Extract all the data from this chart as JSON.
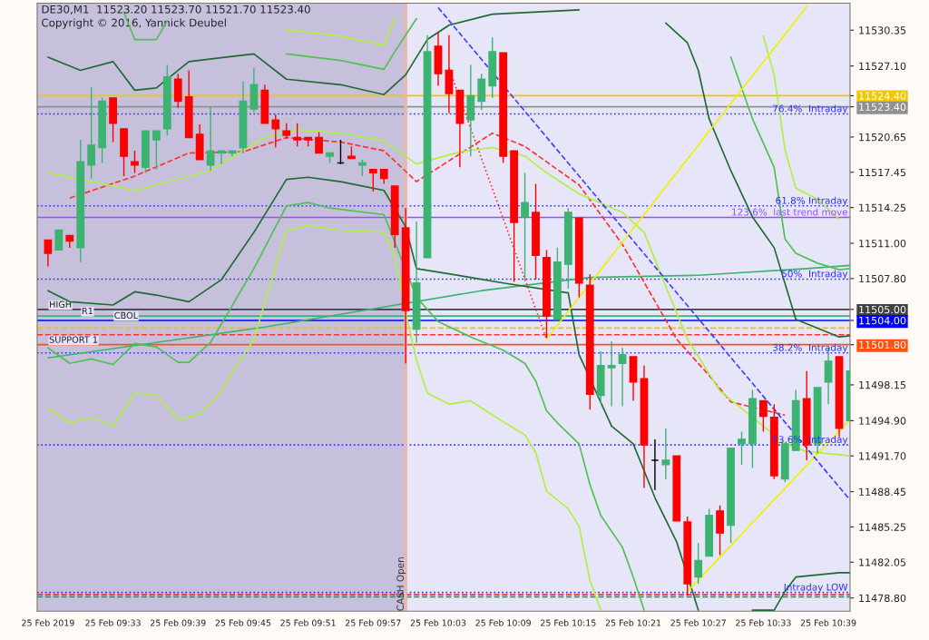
{
  "chart_data": {
    "type": "candlestick",
    "title": "DE30,M1  11523.20 11523.70 11521.70 11523.40",
    "annotations": [
      "Copyright © 2016, Yannick Deubel",
      {
        "text": "HIGH",
        "x": "2019-02-25T09:27",
        "y": 11505.0
      },
      {
        "text": "R1",
        "x": "2019-02-25T09:30",
        "y": 11504.4
      },
      {
        "text": "CBOL",
        "x": "2019-02-25T09:33",
        "y": 11504.0
      },
      {
        "text": "SUPPORT 1",
        "x": "2019-02-25T09:27",
        "y": 11501.8
      }
    ],
    "x": [
      "2019-02-25T09:27",
      "2019-02-25T09:28",
      "2019-02-25T09:29",
      "2019-02-25T09:30",
      "2019-02-25T09:31",
      "2019-02-25T09:32",
      "2019-02-25T09:33",
      "2019-02-25T09:34",
      "2019-02-25T09:35",
      "2019-02-25T09:36",
      "2019-02-25T09:37",
      "2019-02-25T09:38",
      "2019-02-25T09:39",
      "2019-02-25T09:40",
      "2019-02-25T09:41",
      "2019-02-25T09:42",
      "2019-02-25T09:43",
      "2019-02-25T09:44",
      "2019-02-25T09:45",
      "2019-02-25T09:46",
      "2019-02-25T09:47",
      "2019-02-25T09:48",
      "2019-02-25T09:49",
      "2019-02-25T09:50",
      "2019-02-25T09:51",
      "2019-02-25T09:52",
      "2019-02-25T09:53",
      "2019-02-25T09:54",
      "2019-02-25T09:55",
      "2019-02-25T09:56",
      "2019-02-25T09:57",
      "2019-02-25T09:58",
      "2019-02-25T09:59",
      "2019-02-25T10:00",
      "2019-02-25T10:01",
      "2019-02-25T10:02",
      "2019-02-25T10:03",
      "2019-02-25T10:04",
      "2019-02-25T10:05",
      "2019-02-25T10:06",
      "2019-02-25T10:07",
      "2019-02-25T10:08",
      "2019-02-25T10:09",
      "2019-02-25T10:10",
      "2019-02-25T10:11",
      "2019-02-25T10:12",
      "2019-02-25T10:13",
      "2019-02-25T10:14",
      "2019-02-25T10:15",
      "2019-02-25T10:16",
      "2019-02-25T10:17",
      "2019-02-25T10:18",
      "2019-02-25T10:19",
      "2019-02-25T10:20",
      "2019-02-25T10:21",
      "2019-02-25T10:22",
      "2019-02-25T10:23",
      "2019-02-25T10:24",
      "2019-02-25T10:25",
      "2019-02-25T10:26",
      "2019-02-25T10:27",
      "2019-02-25T10:28",
      "2019-02-25T10:29",
      "2019-02-25T10:30",
      "2019-02-25T10:31",
      "2019-02-25T10:32",
      "2019-02-25T10:33",
      "2019-02-25T10:34",
      "2019-02-25T10:35",
      "2019-02-25T10:36",
      "2019-02-25T10:37",
      "2019-02-25T10:38",
      "2019-02-25T10:39",
      "2019-02-25T10:40",
      "2019-02-25T10:41"
    ],
    "ohlc": [
      [
        11511.3,
        11511.3,
        11508.9,
        11510.1
      ],
      [
        11510.4,
        11512.2,
        11510.4,
        11512.2
      ],
      [
        11511.7,
        11511.7,
        11510.6,
        11511.2
      ],
      [
        11510.6,
        11520.4,
        11509.3,
        11518.4
      ],
      [
        11518.1,
        11525.2,
        11516.9,
        11519.9
      ],
      [
        11519.7,
        11524.2,
        11518.3,
        11523.9
      ],
      [
        11524.2,
        11524.2,
        11520.2,
        11521.9
      ],
      [
        11521.4,
        11521.4,
        11517.1,
        11518.9
      ],
      [
        11518.4,
        11519.4,
        11517.4,
        11518.1
      ],
      [
        11517.9,
        11521.2,
        11517.4,
        11521.2
      ],
      [
        11520.4,
        11521.2,
        11517.7,
        11521.2
      ],
      [
        11521.4,
        11527.2,
        11520.8,
        11526.1
      ],
      [
        11525.9,
        11526.4,
        11523.3,
        11523.9
      ],
      [
        11524.3,
        11526.7,
        11520.6,
        11520.6
      ],
      [
        11520.9,
        11521.8,
        11518.6,
        11518.6
      ],
      [
        11518.1,
        11523.4,
        11517.6,
        11519.4
      ],
      [
        11519.2,
        11519.4,
        11518.2,
        11519.4
      ],
      [
        11519.2,
        11519.4,
        11518.9,
        11519.4
      ],
      [
        11519.7,
        11525.7,
        11519.2,
        11523.9
      ],
      [
        11523.2,
        11526.9,
        11522.9,
        11525.4
      ],
      [
        11524.9,
        11525.4,
        11521.9,
        11521.9
      ],
      [
        11522.2,
        11522.7,
        11519.7,
        11521.4
      ],
      [
        11521.2,
        11521.9,
        11520.5,
        11520.8
      ],
      [
        11520.6,
        11521.9,
        11519.8,
        11520.4
      ],
      [
        11520.6,
        11520.6,
        11519.8,
        11520.4
      ],
      [
        11520.6,
        11521.1,
        11519.2,
        11519.2
      ],
      [
        11518.9,
        11519.2,
        11518.3,
        11519.2
      ],
      [
        11518.3,
        11520.4,
        11518.2,
        11518.3
      ],
      [
        11518.9,
        11519.8,
        11518.7,
        11518.7
      ],
      [
        11518.1,
        11518.6,
        11517.1,
        11518.3
      ],
      [
        11517.7,
        11517.7,
        11515.7,
        11517.4
      ],
      [
        11517.7,
        11517.7,
        11516.4,
        11516.9
      ],
      [
        11516.2,
        11516.2,
        11510.6,
        11511.8
      ],
      [
        11512.4,
        11514.2,
        11500.1,
        11504.9
      ],
      [
        11503.2,
        11513.0,
        11502.0,
        11507.4
      ],
      [
        11509.7,
        11529.9,
        11509.7,
        11528.4
      ],
      [
        11528.9,
        11530.2,
        11525.3,
        11526.4
      ],
      [
        11526.7,
        11529.9,
        11522.8,
        11524.6
      ],
      [
        11524.9,
        11524.9,
        11517.9,
        11521.9
      ],
      [
        11522.2,
        11527.2,
        11518.9,
        11524.4
      ],
      [
        11523.9,
        11526.4,
        11523.1,
        11525.9
      ],
      [
        11525.3,
        11529.7,
        11524.2,
        11528.4
      ],
      [
        11528.3,
        11528.3,
        11518.3,
        11518.9
      ],
      [
        11519.4,
        11519.4,
        11507.5,
        11512.9
      ],
      [
        11513.4,
        11517.4,
        11507.7,
        11514.7
      ],
      [
        11513.8,
        11516.4,
        11507.7,
        11509.9
      ],
      [
        11509.7,
        11510.4,
        11502.4,
        11504.4
      ],
      [
        11504.1,
        11510.6,
        11504.1,
        11509.3
      ],
      [
        11509.1,
        11514.2,
        11506.9,
        11513.8
      ],
      [
        11513.3,
        11513.3,
        11506.1,
        11507.4
      ],
      [
        11507.2,
        11508.2,
        11495.9,
        11497.3
      ],
      [
        11497.2,
        11501.2,
        11496.4,
        11499.9
      ],
      [
        11499.7,
        11502.1,
        11496.2,
        11499.9
      ],
      [
        11500.1,
        11501.5,
        11496.2,
        11500.9
      ],
      [
        11500.7,
        11500.7,
        11496.7,
        11498.4
      ],
      [
        11498.7,
        11499.9,
        11488.8,
        11492.7
      ],
      [
        11491.3,
        11493.2,
        11488.6,
        11491.3
      ],
      [
        11490.9,
        11494.2,
        11489.6,
        11491.3
      ],
      [
        11491.7,
        11491.7,
        11485.8,
        11485.8
      ],
      [
        11485.7,
        11486.2,
        11479.0,
        11480.1
      ],
      [
        11480.7,
        11483.8,
        11480.1,
        11482.2
      ],
      [
        11482.6,
        11486.9,
        11482.6,
        11486.3
      ],
      [
        11486.7,
        11487.2,
        11482.7,
        11484.7
      ],
      [
        11485.4,
        11492.4,
        11483.8,
        11492.4
      ],
      [
        11492.8,
        11493.9,
        11490.9,
        11493.2
      ],
      [
        11492.8,
        11497.7,
        11490.6,
        11496.9
      ],
      [
        11496.7,
        11496.7,
        11493.9,
        11495.3
      ],
      [
        11495.2,
        11496.4,
        11489.6,
        11489.9
      ],
      [
        11489.6,
        11492.8,
        11489.3,
        11492.8
      ],
      [
        11492.2,
        11497.7,
        11492.2,
        11496.7
      ],
      [
        11496.9,
        11499.4,
        11491.3,
        11492.7
      ],
      [
        11492.8,
        11497.9,
        11491.9,
        11497.9
      ],
      [
        11498.4,
        11501.5,
        11496.4,
        11500.3
      ],
      [
        11500.7,
        11500.7,
        11493.4,
        11494.2
      ],
      [
        11494.9,
        11499.4,
        11494.9,
        11499.4
      ]
    ],
    "colors": [
      "#ff0000",
      "#3cb371",
      "#ff0000",
      "#3cb371",
      "#3cb371",
      "#3cb371",
      "#ff0000",
      "#ff0000",
      "#ff0000",
      "#3cb371",
      "#3cb371",
      "#3cb371",
      "#ff0000",
      "#ff0000",
      "#ff0000",
      "#3cb371",
      "#3cb371",
      "#3cb371",
      "#3cb371",
      "#3cb371",
      "#ff0000",
      "#ff0000",
      "#ff0000",
      "#ff0000",
      "#ff0000",
      "#ff0000",
      "#3cb371",
      "#000000",
      "#ff0000",
      "#3cb371",
      "#ff0000",
      "#ff0000",
      "#ff0000",
      "#ff0000",
      "#3cb371",
      "#3cb371",
      "#ff0000",
      "#ff0000",
      "#ff0000",
      "#3cb371",
      "#3cb371",
      "#3cb371",
      "#ff0000",
      "#ff0000",
      "#3cb371",
      "#ff0000",
      "#ff0000",
      "#3cb371",
      "#3cb371",
      "#ff0000",
      "#ff0000",
      "#3cb371",
      "#3cb371",
      "#3cb371",
      "#ff0000",
      "#ff0000",
      "#000000",
      "#3cb371",
      "#ff0000",
      "#ff0000",
      "#3cb371",
      "#3cb371",
      "#ff0000",
      "#3cb371",
      "#3cb371",
      "#3cb371",
      "#ff0000",
      "#ff0000",
      "#3cb371",
      "#3cb371",
      "#ff0000",
      "#3cb371",
      "#3cb371",
      "#ff0000",
      "#3cb371"
    ],
    "series": [
      {
        "type": "line",
        "color": "#3cb371",
        "line_style": "solid",
        "x": [
          "2019-02-25T09:27",
          "2019-02-25T09:37",
          "2019-02-25T09:47",
          "2019-02-25T10:07",
          "2019-02-25T10:17",
          "2019-02-25T10:27",
          "2019-02-25T10:37",
          "2019-02-25T10:41"
        ],
        "values": [
          11500.6,
          11502.0,
          11503.4,
          11506.7,
          11507.9,
          11508.1,
          11508.7,
          11509.0
        ]
      },
      {
        "type": "line",
        "color": "#ff3030",
        "line_style": "dashed",
        "x": [
          "2019-02-25T09:29",
          "2019-02-25T09:35",
          "2019-02-25T09:40",
          "2019-02-25T09:45",
          "2019-02-25T09:49",
          "2019-02-25T09:54",
          "2019-02-25T09:58",
          "2019-02-25T10:01",
          "2019-02-25T10:08",
          "2019-02-25T10:11",
          "2019-02-25T10:16",
          "2019-02-25T10:20",
          "2019-02-25T10:25",
          "2019-02-25T10:28",
          "2019-02-25T10:30",
          "2019-02-25T10:35"
        ],
        "values": [
          11515.1,
          11517.1,
          11519.2,
          11519.3,
          11520.6,
          11520.2,
          11519.4,
          11516.6,
          11521.0,
          11519.8,
          11516.3,
          11510.9,
          11502.3,
          11499.0,
          11496.6,
          11495.4
        ]
      },
      {
        "type": "line",
        "color": "#b0f040",
        "line_style": "solid",
        "x": [
          "2019-02-25T09:27",
          "2019-02-25T09:35",
          "2019-02-25T09:42",
          "2019-02-25T09:47",
          "2019-02-25T09:50",
          "2019-02-25T09:54",
          "2019-02-25T09:58",
          "2019-02-25T10:01",
          "2019-02-25T10:05",
          "2019-02-25T10:08",
          "2019-02-25T10:11",
          "2019-02-25T10:13",
          "2019-02-25T10:16",
          "2019-02-25T10:20",
          "2019-02-25T10:22",
          "2019-02-25T10:24",
          "2019-02-25T10:26",
          "2019-02-25T10:29",
          "2019-02-25T10:35",
          "2019-02-25T10:37",
          "2019-02-25T10:41"
        ],
        "values": [
          11517.4,
          11515.8,
          11517.6,
          11520.6,
          11521.3,
          11521.0,
          11520.3,
          11518.2,
          11519.3,
          11519.7,
          11518.9,
          11517.4,
          11515.5,
          11513.8,
          11512.0,
          11507.1,
          11502.3,
          11497.6,
          11492.8,
          11492.1,
          11491.7
        ]
      },
      {
        "type": "line",
        "color": "#1e6b32",
        "line_style": "solid",
        "x": [
          "2019-02-25T09:27",
          "2019-02-25T09:30",
          "2019-02-25T09:33",
          "2019-02-25T09:35",
          "2019-02-25T09:37",
          "2019-02-25T09:40",
          "2019-02-25T09:46",
          "2019-02-25T09:49",
          "2019-02-25T09:54",
          "2019-02-25T09:58",
          "2019-02-25T10:00",
          "2019-02-25T10:02",
          "2019-02-25T10:04",
          "2019-02-25T10:08",
          "2019-02-25T10:16",
          "2019-02-25T10:20",
          "2019-02-25T10:24",
          "2019-02-25T10:26",
          "2019-02-25T10:27",
          "2019-02-25T10:28",
          "2019-02-25T10:30",
          "2019-02-25T10:32",
          "2019-02-25T10:34",
          "2019-02-25T10:36",
          "2019-02-25T10:38",
          "2019-02-25T10:40",
          "2019-02-25T10:41"
        ],
        "values": [
          11527.9,
          11526.7,
          11527.5,
          11524.9,
          11525.1,
          11527.5,
          11528.2,
          11525.9,
          11525.4,
          11524.5,
          11526.3,
          11529.5,
          11530.8,
          11531.8,
          11532.2,
          null,
          11531.0,
          11529.2,
          11526.7,
          11522.3,
          11517.6,
          11513.4,
          11510.6,
          11504.1,
          11503.3,
          11502.5,
          11502.6
        ]
      },
      {
        "type": "line",
        "color": "#1e6b32",
        "line_style": "solid",
        "x": [
          "2019-02-25T09:27",
          "2019-02-25T09:29",
          "2019-02-25T09:33",
          "2019-02-25T09:35",
          "2019-02-25T09:37",
          "2019-02-25T09:40",
          "2019-02-25T09:43",
          "2019-02-25T09:46",
          "2019-02-25T09:49",
          "2019-02-25T09:51",
          "2019-02-25T09:54",
          "2019-02-25T09:58",
          "2019-02-25T10:00",
          "2019-02-25T10:01",
          "2019-02-25T10:06",
          "2019-02-25T10:09",
          "2019-02-25T10:15",
          "2019-02-25T10:16",
          "2019-02-25T10:19",
          "2019-02-25T10:21",
          "2019-02-25T10:23",
          "2019-02-25T10:25",
          "2019-02-25T10:27",
          "2019-02-25T10:29",
          "2019-02-25T10:32",
          "2019-02-25T10:34",
          "2019-02-25T10:35",
          "2019-02-25T10:36",
          "2019-02-25T10:40",
          "2019-02-25T10:41"
        ],
        "values": [
          11506.7,
          11505.7,
          11505.4,
          11506.6,
          11506.3,
          11505.7,
          11507.7,
          11512.0,
          11516.8,
          11517.0,
          11516.6,
          11515.8,
          11512.5,
          11508.7,
          11507.9,
          11507.4,
          11506.5,
          11500.9,
          11494.4,
          11492.8,
          11487.9,
          11483.9,
          11477.7,
          null,
          11477.7,
          11477.7,
          11479.4,
          11480.7,
          11481.1,
          11481.1
        ]
      },
      {
        "type": "line",
        "color": "#50c050",
        "line_style": "solid",
        "x": [
          "2019-02-25T09:34",
          "2019-02-25T09:35",
          "2019-02-25T09:37",
          "2019-02-25T09:38",
          "2019-02-25T09:42",
          "2019-02-25T09:49",
          "2019-02-25T09:54",
          "2019-02-25T09:58",
          "2019-02-25T09:59",
          "2019-02-25T10:01",
          "2019-02-25T10:12",
          "2019-02-25T10:30",
          "2019-02-25T10:32",
          "2019-02-25T10:34",
          "2019-02-25T10:35",
          "2019-02-25T10:36",
          "2019-02-25T10:38",
          "2019-02-25T10:40",
          "2019-02-25T10:41"
        ],
        "values": [
          11532.0,
          11529.5,
          11529.5,
          11531.2,
          null,
          11528.2,
          11527.6,
          11526.8,
          11528.4,
          11531.4,
          null,
          11527.9,
          11522.3,
          11517.9,
          11511.4,
          11510.1,
          11509.2,
          11508.6,
          11508.7
        ]
      },
      {
        "type": "line",
        "color": "#50c050",
        "line_style": "solid",
        "x": [
          "2019-02-25T09:27",
          "2019-02-25T09:29",
          "2019-02-25T09:31",
          "2019-02-25T09:33",
          "2019-02-25T09:35",
          "2019-02-25T09:37",
          "2019-02-25T09:39",
          "2019-02-25T09:40",
          "2019-02-25T09:42",
          "2019-02-25T09:46",
          "2019-02-25T09:49",
          "2019-02-25T09:51",
          "2019-02-25T09:53",
          "2019-02-25T09:58",
          "2019-02-25T10:01",
          "2019-02-25T10:03",
          "2019-02-25T10:06",
          "2019-02-25T10:09",
          "2019-02-25T10:11",
          "2019-02-25T10:12",
          "2019-02-25T10:13",
          "2019-02-25T10:14",
          "2019-02-25T10:16",
          "2019-02-25T10:17",
          "2019-02-25T10:18",
          "2019-02-25T10:20",
          "2019-02-25T10:21",
          "2019-02-25T10:22"
        ],
        "values": [
          11501.5,
          11500.1,
          11500.5,
          11500.0,
          11501.9,
          11501.6,
          11500.2,
          11500.2,
          11502.0,
          11508.7,
          11514.4,
          11514.7,
          11514.2,
          11513.6,
          11506.1,
          11503.9,
          11502.5,
          11501.3,
          11500.1,
          11498.5,
          11495.8,
          11494.7,
          11492.8,
          11489.1,
          11486.3,
          11483.4,
          11480.7,
          11477.7
        ]
      },
      {
        "type": "line",
        "color": "#b0f040",
        "line_style": "solid",
        "x": [
          "2019-02-25T09:49",
          "2019-02-25T09:54",
          "2019-02-25T09:58",
          "2019-02-25T09:59",
          "2019-02-25T10:07",
          "2019-02-25T10:33",
          "2019-02-25T10:34",
          "2019-02-25T10:35",
          "2019-02-25T10:36",
          "2019-02-25T10:38",
          "2019-02-25T10:40"
        ],
        "values": [
          11530.4,
          11529.8,
          11529.0,
          11531.4,
          null,
          11529.8,
          11526.3,
          11519.5,
          11516.0,
          11515.0,
          11513.2
        ]
      },
      {
        "type": "line",
        "color": "#b0f040",
        "line_style": "solid",
        "x": [
          "2019-02-25T09:27",
          "2019-02-25T09:29",
          "2019-02-25T09:31",
          "2019-02-25T09:33",
          "2019-02-25T09:35",
          "2019-02-25T09:37",
          "2019-02-25T09:39",
          "2019-02-25T09:41",
          "2019-02-25T09:43",
          "2019-02-25T09:44",
          "2019-02-25T09:46",
          "2019-02-25T09:49",
          "2019-02-25T09:51",
          "2019-02-25T09:54",
          "2019-02-25T09:58",
          "2019-02-25T09:59",
          "2019-02-25T10:00",
          "2019-02-25T10:01",
          "2019-02-25T10:02",
          "2019-02-25T10:04",
          "2019-02-25T10:06",
          "2019-02-25T10:08",
          "2019-02-25T10:11",
          "2019-02-25T10:12",
          "2019-02-25T10:13",
          "2019-02-25T10:15",
          "2019-02-25T10:16",
          "2019-02-25T10:17",
          "2019-02-25T10:18"
        ],
        "values": [
          11496.0,
          11494.7,
          11495.2,
          11494.4,
          11497.4,
          11497.2,
          11495.0,
          11495.5,
          11497.5,
          11499.3,
          11502.3,
          11512.2,
          11512.6,
          11512.2,
          11512.0,
          11509.8,
          11504.7,
          11500.4,
          11497.4,
          11496.4,
          11496.7,
          11495.4,
          11493.6,
          11492.0,
          11488.5,
          11486.9,
          11485.3,
          11480.4,
          11477.7
        ]
      },
      {
        "type": "line",
        "color": "#f0f000",
        "line_style": "solid",
        "x": [
          "2019-02-25T10:13",
          "2019-02-25T10:37"
        ],
        "values": [
          11502.3,
          11532.5
        ]
      },
      {
        "type": "line",
        "color": "#f0f000",
        "line_style": "solid",
        "x": [
          "2019-02-25T10:26",
          "2019-02-25T10:41"
        ],
        "values": [
          11479.4,
          11495.0
        ]
      },
      {
        "type": "line",
        "color": "#4040ff",
        "line_style": "dashed",
        "x": [
          "2019-02-25T10:03",
          "2019-02-25T10:41"
        ],
        "values": [
          11532.4,
          11487.7
        ]
      },
      {
        "type": "line",
        "color": "#ff3030",
        "line_style": "dotted",
        "x": [
          "2019-02-25T10:04",
          "2019-02-25T10:13"
        ],
        "values": [
          11526.9,
          11502.3
        ]
      }
    ],
    "ref_lines": [
      {
        "axis": "y",
        "value": 11524.4,
        "color": "#f0c800",
        "line_style": "solid"
      },
      {
        "axis": "y",
        "value": 11523.4,
        "color": "#909090",
        "line_style": "solid"
      },
      {
        "axis": "y",
        "value": 11522.75,
        "label": "76.4%  Intraday",
        "color": "#3030ff",
        "line_style": "dotted"
      },
      {
        "axis": "y",
        "value": 11514.4,
        "label": "61.8% Intraday",
        "color": "#3030ff",
        "line_style": "dotted"
      },
      {
        "axis": "y",
        "value": 11513.35,
        "label": "123.6%  last trend move",
        "color": "#9b4dff",
        "line_style": "solid"
      },
      {
        "axis": "y",
        "value": 11507.75,
        "label": "50%  Intraday",
        "color": "#3030ff",
        "line_style": "dotted"
      },
      {
        "axis": "y",
        "value": 11505.0,
        "color": "#404040",
        "line_style": "solid"
      },
      {
        "axis": "y",
        "value": 11504.4,
        "color": "#3cb371",
        "line_style": "solid"
      },
      {
        "axis": "y",
        "value": 11504.0,
        "color": "#0000ff",
        "line_style": "solid"
      },
      {
        "axis": "y",
        "value": 11503.3,
        "color": "#f0c000",
        "line_style": "dashed"
      },
      {
        "axis": "y",
        "value": 11502.7,
        "color": "#ff3030",
        "line_style": "dashed"
      },
      {
        "axis": "y",
        "value": 11501.8,
        "color": "#ff5010",
        "line_style": "solid"
      },
      {
        "axis": "y",
        "value": 11501.05,
        "label": "38.2%  Intraday",
        "color": "#3030ff",
        "line_style": "dotted"
      },
      {
        "axis": "y",
        "value": 11492.7,
        "label": "23.6%  Intraday",
        "color": "#3030ff",
        "line_style": "dotted"
      },
      {
        "axis": "y",
        "value": 11479.3,
        "label": "Intraday LOW",
        "color": "#3030ff",
        "line_style": "dotted"
      },
      {
        "axis": "y",
        "value": 11479.1,
        "color": "#ff3030",
        "line_style": "dashed"
      },
      {
        "axis": "y",
        "value": 11478.9,
        "color": "#2e8b57",
        "line_style": "dashed"
      },
      {
        "axis": "x",
        "value": "2019-02-25T10:00",
        "label": "CASH Open",
        "color": "#e8b8a8",
        "line_style": "solid"
      }
    ],
    "bands": [
      {
        "axis": "x",
        "from": "2019-02-25T09:26",
        "to": "2019-02-25T10:00",
        "color": "#c6c0dc"
      }
    ],
    "xlim": [
      "2019-02-25T09:26",
      "2019-02-25T10:41"
    ],
    "xticks": [
      {
        "value": "2019-02-25T09:27",
        "label": "25 Feb 2019"
      },
      {
        "value": "2019-02-25T09:33",
        "label": "25 Feb 09:33"
      },
      {
        "value": "2019-02-25T09:39",
        "label": "25 Feb 09:39"
      },
      {
        "value": "2019-02-25T09:45",
        "label": "25 Feb 09:45"
      },
      {
        "value": "2019-02-25T09:51",
        "label": "25 Feb 09:51"
      },
      {
        "value": "2019-02-25T09:57",
        "label": "25 Feb 09:57"
      },
      {
        "value": "2019-02-25T10:03",
        "label": "25 Feb 10:03"
      },
      {
        "value": "2019-02-25T10:09",
        "label": "25 Feb 10:09"
      },
      {
        "value": "2019-02-25T10:15",
        "label": "25 Feb 10:15"
      },
      {
        "value": "2019-02-25T10:21",
        "label": "25 Feb 10:21"
      },
      {
        "value": "2019-02-25T10:27",
        "label": "25 Feb 10:27"
      },
      {
        "value": "2019-02-25T10:33",
        "label": "25 Feb 10:33"
      },
      {
        "value": "2019-02-25T10:39",
        "label": "25 Feb 10:39"
      }
    ],
    "ylim": [
      11477.6,
      11532.8
    ],
    "yticks": [
      11530.35,
      {
        "value": 11527.1,
        "label": "11527.10"
      },
      {
        "value": 11524.4,
        "label": "11524.40"
      },
      {
        "value": 11523.4,
        "label": "11523.40"
      },
      11520.65,
      11517.45,
      11514.25,
      {
        "value": 11511.0,
        "label": "11511.00"
      },
      {
        "value": 11507.8,
        "label": "11507.80"
      },
      {
        "value": 11505.0,
        "label": "11505.00"
      },
      {
        "value": 11504.0,
        "label": "11504.00"
      },
      {
        "value": 11501.8,
        "label": "11501.80"
      },
      11498.15,
      {
        "value": 11494.9,
        "label": "11494.90"
      },
      {
        "value": 11491.7,
        "label": "11491.70"
      },
      11488.45,
      11485.25,
      11482.05,
      {
        "value": 11478.8,
        "label": "11478.80"
      }
    ]
  }
}
